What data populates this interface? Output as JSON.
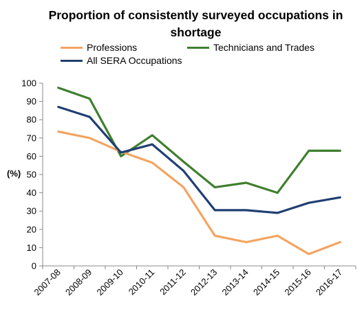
{
  "chart_data": {
    "type": "line",
    "title": "Proportion of consistently surveyed occupations in shortage",
    "ylabel": "(%)",
    "xlabel": "",
    "ylim": [
      0,
      100
    ],
    "yticks": [
      0,
      10,
      20,
      30,
      40,
      50,
      60,
      70,
      80,
      90,
      100
    ],
    "grid": false,
    "legend_position": "top",
    "categories": [
      "2007-08",
      "2008-09",
      "2009-10",
      "2010-11",
      "2011-12",
      "2012-13",
      "2013-14",
      "2014-15",
      "2015-16",
      "2016-17"
    ],
    "series": [
      {
        "name": "Professions",
        "color": "#f4a460",
        "values": [
          73.5,
          70,
          62.5,
          56.5,
          43,
          16.5,
          13,
          16.5,
          6.5,
          13
        ]
      },
      {
        "name": "Technicians and Trades",
        "color": "#3f7f2f",
        "values": [
          97.5,
          91.5,
          60,
          71.5,
          57,
          43,
          45.5,
          40,
          63,
          63
        ]
      },
      {
        "name": "All SERA Occupations",
        "color": "#1f3f73",
        "values": [
          87,
          81.5,
          62,
          66.5,
          52,
          30.5,
          30.5,
          29,
          34.5,
          37.5
        ]
      }
    ]
  }
}
